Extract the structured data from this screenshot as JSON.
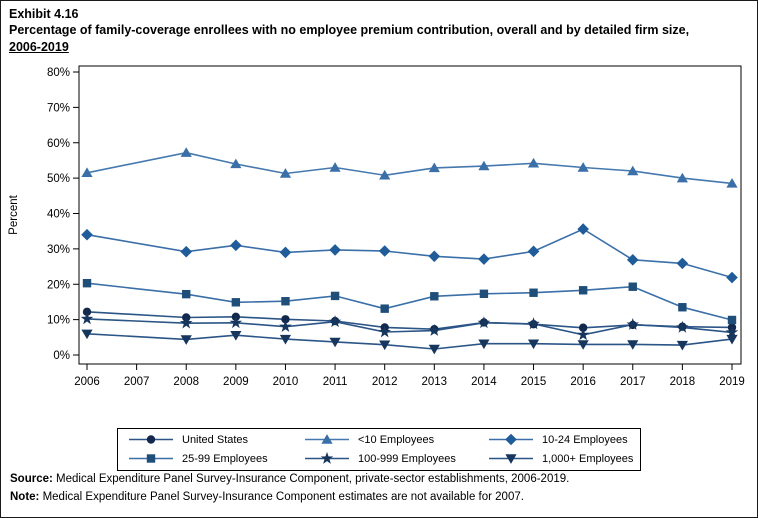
{
  "header": {
    "exhibit_label": "Exhibit 4.16",
    "title_line": "Percentage of family-coverage enrollees with no employee premium contribution, overall and by detailed firm size,",
    "title_years": "2006-2019"
  },
  "footer": {
    "source_label": "Source:",
    "source_text": " Medical Expenditure Panel Survey-Insurance Component, private-sector establishments, 2006-2019.",
    "note_label": "Note:",
    "note_text": " Medical Expenditure Panel Survey-Insurance Component estimates are not available for 2007."
  },
  "chart_data": {
    "type": "line",
    "title": "Percentage of family-coverage enrollees with no employee premium contribution, overall and by detailed firm size, 2006-2019",
    "xlabel": "",
    "ylabel": "Percent",
    "ylim": [
      0,
      80
    ],
    "ytick_step": 10,
    "ytick_suffix": "%",
    "grid": false,
    "legend_position": "bottom",
    "note": "2007 estimates not available; lines connect 2006 to 2008 across the gap",
    "x": [
      2006,
      2007,
      2008,
      2009,
      2010,
      2011,
      2012,
      2013,
      2014,
      2015,
      2016,
      2017,
      2018,
      2019
    ],
    "x_tick_labels": [
      "2006",
      "2007",
      "2008",
      "2009",
      "2010",
      "2011",
      "2012",
      "2013",
      "2014",
      "2015",
      "2016",
      "2017",
      "2018",
      "2019"
    ],
    "series": [
      {
        "name": "United States",
        "marker": "circle",
        "line_color": "#2B5586",
        "marker_color": "#12284C",
        "values": [
          12.2,
          null,
          10.6,
          10.8,
          10.1,
          9.6,
          7.8,
          7.3,
          9.2,
          8.7,
          7.7,
          8.5,
          8.0,
          7.8
        ]
      },
      {
        "name": "<10 Employees",
        "marker": "triangle-up",
        "line_color": "#4478AE",
        "marker_color": "#3A6FA8",
        "values": [
          51.5,
          null,
          57.2,
          54.0,
          51.3,
          53.0,
          50.8,
          52.9,
          53.4,
          54.2,
          53.0,
          52.0,
          50.0,
          48.5
        ]
      },
      {
        "name": "10-24 Employees",
        "marker": "diamond",
        "line_color": "#3A6FA8",
        "marker_color": "#1F5C99",
        "values": [
          34.0,
          null,
          29.2,
          31.0,
          29.0,
          29.7,
          29.4,
          27.9,
          27.1,
          29.3,
          35.6,
          26.9,
          25.9,
          21.9
        ]
      },
      {
        "name": "25-99 Employees",
        "marker": "square",
        "line_color": "#3A6FA8",
        "marker_color": "#1F4E79",
        "values": [
          20.3,
          null,
          17.2,
          14.9,
          15.2,
          16.7,
          13.1,
          16.6,
          17.3,
          17.6,
          18.3,
          19.3,
          13.5,
          9.9
        ]
      },
      {
        "name": "100-999 Employees",
        "marker": "star",
        "line_color": "#2B5586",
        "marker_color": "#17365D",
        "values": [
          10.2,
          null,
          9.0,
          9.1,
          8.0,
          9.4,
          6.5,
          6.9,
          9.1,
          8.8,
          5.7,
          8.6,
          7.8,
          6.4
        ]
      },
      {
        "name": "1,000+ Employees",
        "marker": "triangle-down",
        "line_color": "#2B5586",
        "marker_color": "#17365D",
        "values": [
          6.0,
          null,
          4.4,
          5.6,
          4.5,
          3.7,
          2.9,
          1.7,
          3.2,
          3.2,
          3.0,
          3.0,
          2.8,
          4.5
        ]
      }
    ]
  }
}
